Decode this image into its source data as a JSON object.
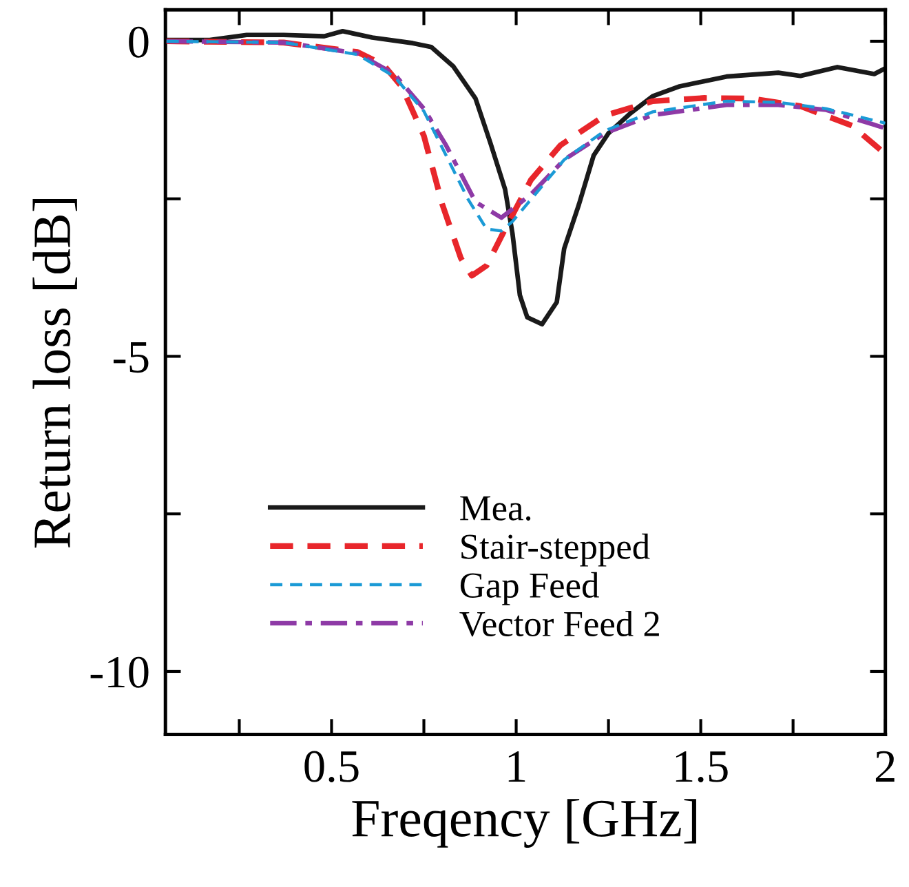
{
  "chart_data": {
    "type": "line",
    "xlabel": "Freqency [GHz]",
    "ylabel": "Return loss [dB]",
    "xlim": [
      0.05,
      2
    ],
    "xticks": [
      {
        "value": 0.25,
        "label": null
      },
      0.5,
      {
        "value": 0.75,
        "label": null
      },
      1,
      {
        "value": 1.25,
        "label": null
      },
      1.5,
      {
        "value": 1.75,
        "label": null
      },
      2
    ],
    "ylim": [
      -11,
      0.5
    ],
    "yticks": [
      -10,
      {
        "value": -7.5,
        "label": null
      },
      -5,
      {
        "value": -2.5,
        "label": null
      },
      0
    ],
    "grid": false,
    "legend": "bottom left",
    "marker": "none",
    "series": [
      {
        "name": "Mea.",
        "color": "#1a1a1a",
        "line_style": "solid",
        "x": [
          0.053,
          0.17,
          0.27,
          0.37,
          0.48,
          0.53,
          0.61,
          0.72,
          0.77,
          0.83,
          0.89,
          0.93,
          0.97,
          0.99,
          1.01,
          1.03,
          1.07,
          1.11,
          1.13,
          1.17,
          1.21,
          1.25,
          1.31,
          1.37,
          1.44,
          1.57,
          1.71,
          1.77,
          1.87,
          1.97,
          2.0
        ],
        "values": [
          0.02,
          0.02,
          0.1,
          0.1,
          0.08,
          0.16,
          0.06,
          -0.03,
          -0.09,
          -0.4,
          -0.91,
          -1.61,
          -2.35,
          -3.05,
          -4.03,
          -4.38,
          -4.49,
          -4.14,
          -3.29,
          -2.59,
          -1.81,
          -1.46,
          -1.14,
          -0.87,
          -0.72,
          -0.56,
          -0.5,
          -0.55,
          -0.41,
          -0.52,
          -0.43
        ]
      },
      {
        "name": "Stair-stepped",
        "color": "#e8262b",
        "line_style": "dashed",
        "x": [
          0.053,
          0.37,
          0.57,
          0.64,
          0.69,
          0.75,
          0.8,
          0.85,
          0.88,
          0.92,
          0.97,
          1.04,
          1.12,
          1.24,
          1.37,
          1.51,
          1.64,
          1.77,
          1.91,
          2.0
        ],
        "values": [
          0,
          -0.02,
          -0.17,
          -0.37,
          -0.72,
          -1.5,
          -2.59,
          -3.44,
          -3.72,
          -3.56,
          -2.98,
          -2.2,
          -1.65,
          -1.18,
          -0.95,
          -0.9,
          -0.91,
          -1.03,
          -1.34,
          -1.79
        ]
      },
      {
        "name": "Gap Feed",
        "color": "#1b9ad6",
        "line_style": "dashed",
        "x": [
          0.053,
          0.37,
          0.57,
          0.67,
          0.75,
          0.81,
          0.87,
          0.92,
          0.96,
          0.99,
          1.04,
          1.13,
          1.24,
          1.37,
          1.57,
          1.71,
          1.84,
          2.0
        ],
        "values": [
          0,
          -0.02,
          -0.21,
          -0.56,
          -1.11,
          -1.81,
          -2.51,
          -2.98,
          -3.01,
          -2.86,
          -2.51,
          -1.88,
          -1.42,
          -1.12,
          -0.95,
          -0.97,
          -1.07,
          -1.3
        ]
      },
      {
        "name": "Vector Feed 2",
        "color": "#8e3aa6",
        "line_style": "dashdot",
        "x": [
          0.053,
          0.37,
          0.57,
          0.67,
          0.75,
          0.81,
          0.89,
          0.96,
          1.04,
          1.13,
          1.24,
          1.37,
          1.57,
          1.71,
          1.84,
          2.0
        ],
        "values": [
          0,
          -0.02,
          -0.19,
          -0.52,
          -1.07,
          -1.65,
          -2.55,
          -2.8,
          -2.43,
          -1.88,
          -1.46,
          -1.17,
          -1.01,
          -1.01,
          -1.09,
          -1.38
        ]
      }
    ]
  }
}
